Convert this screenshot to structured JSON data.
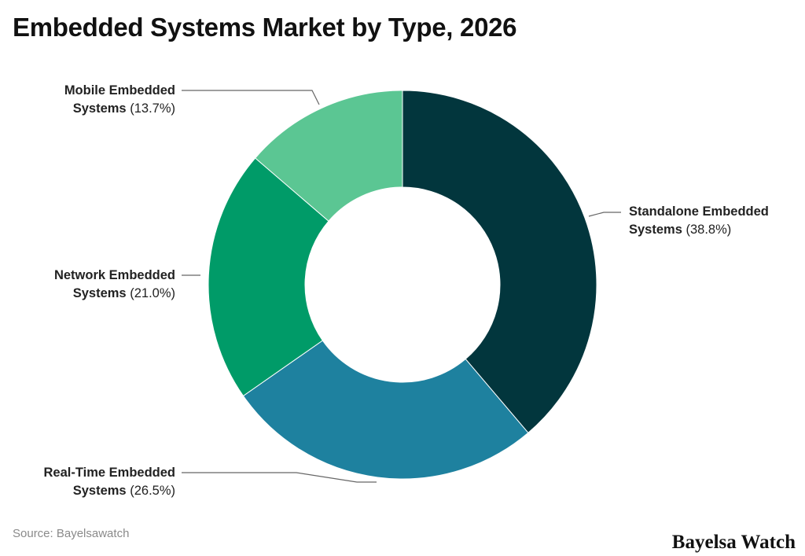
{
  "title": "Embedded Systems Market by Type, 2026",
  "source": "Source: Bayelsawatch",
  "brand": "Bayelsa Watch",
  "labels": {
    "standalone": {
      "name": "Standalone Embedded",
      "name2": "Systems",
      "pct": "(38.8%)"
    },
    "realtime": {
      "name": "Real-Time Embedded",
      "name2": "Systems",
      "pct": "(26.5%)"
    },
    "network": {
      "name": "Network Embedded",
      "name2": "Systems",
      "pct": "(21.0%)"
    },
    "mobile": {
      "name": "Mobile Embedded",
      "name2": "Systems",
      "pct": "(13.7%)"
    }
  },
  "chart_data": {
    "type": "pie",
    "subtype": "donut",
    "title": "Embedded Systems Market by Type, 2026",
    "categories": [
      "Standalone Embedded Systems",
      "Real-Time Embedded Systems",
      "Network Embedded Systems",
      "Mobile Embedded Systems"
    ],
    "values": [
      38.8,
      26.5,
      21.0,
      13.7
    ],
    "unit": "%",
    "colors": [
      "#02363D",
      "#1E819F",
      "#009B68",
      "#5BC693"
    ],
    "start_angle": "12 o'clock, clockwise",
    "legend": "none (direct labels with leader lines)",
    "source": "Source: Bayelsawatch"
  }
}
